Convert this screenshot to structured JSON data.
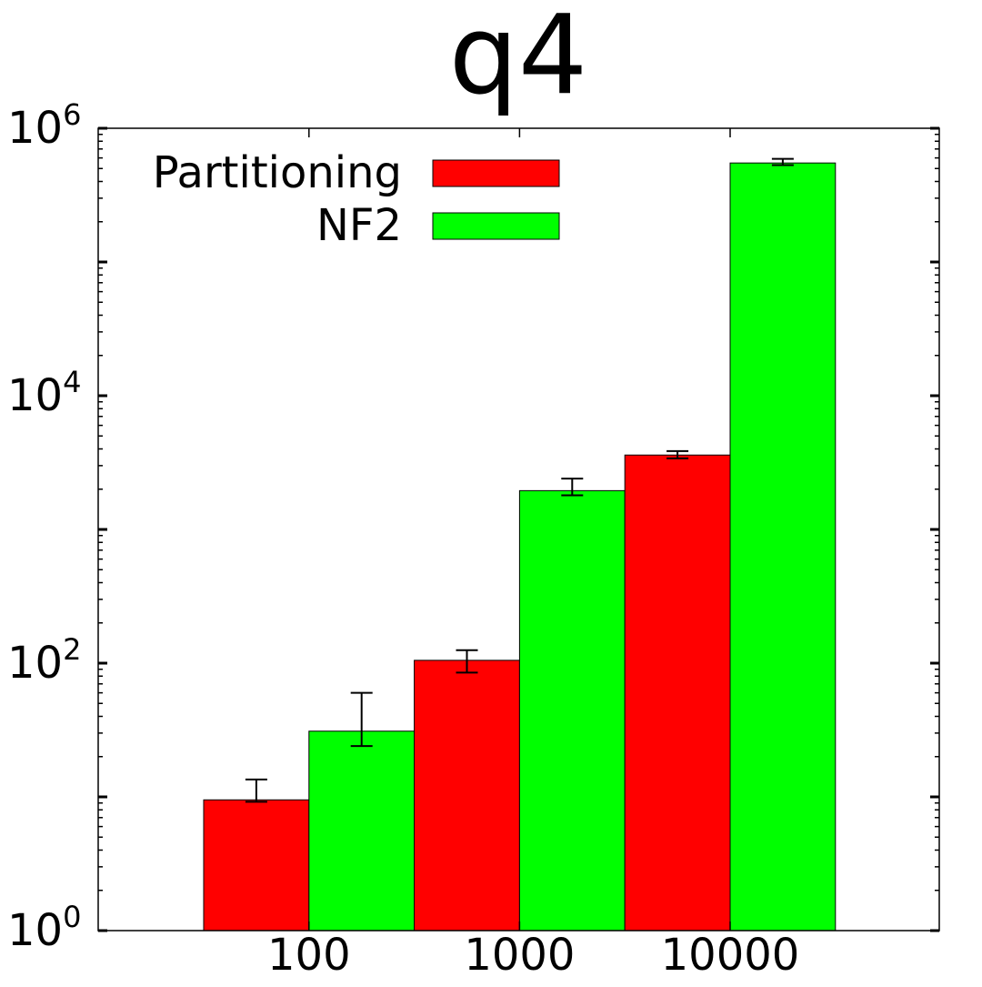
{
  "chart_data": {
    "type": "bar",
    "title": "q4",
    "xlabel": "",
    "ylabel": "",
    "yscale": "log",
    "ylim": [
      1,
      1000000
    ],
    "grid": false,
    "legend_position": "top-left",
    "categories": [
      "100",
      "1000",
      "10000"
    ],
    "y_ticks": [
      {
        "base": "10",
        "exp": "0",
        "value": 1
      },
      {
        "base": "10",
        "exp": "2",
        "value": 100
      },
      {
        "base": "10",
        "exp": "4",
        "value": 10000
      },
      {
        "base": "10",
        "exp": "6",
        "value": 1000000
      }
    ],
    "series": [
      {
        "name": "Partitioning",
        "color": "#ff0000",
        "values": [
          9.5,
          105,
          3600
        ],
        "error_low": [
          9.2,
          85,
          3400
        ],
        "error_high": [
          13.5,
          125,
          3850
        ]
      },
      {
        "name": "NF2",
        "color": "#00ff00",
        "values": [
          31,
          1950,
          550000
        ],
        "error_low": [
          24,
          1800,
          530000
        ],
        "error_high": [
          60,
          2400,
          590000
        ]
      }
    ]
  }
}
